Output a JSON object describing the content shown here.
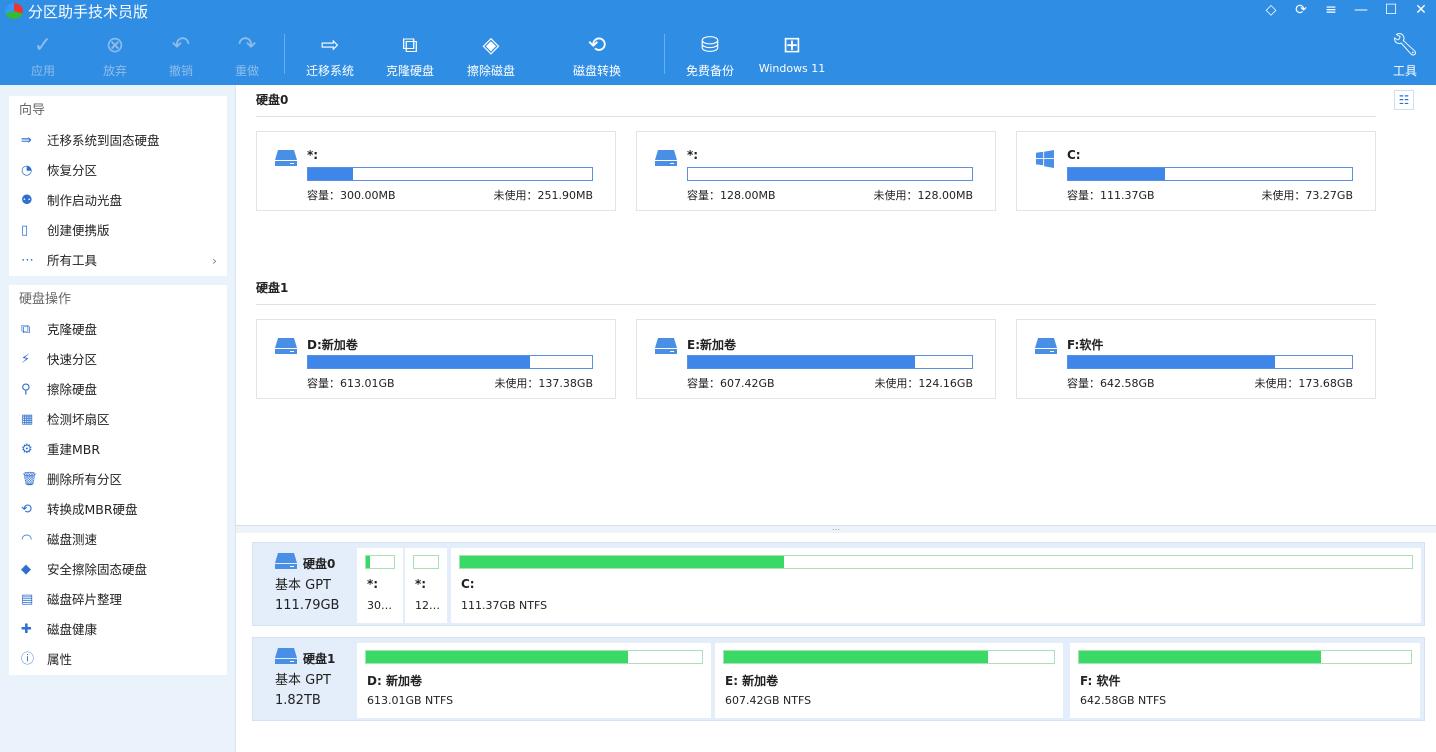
{
  "app": {
    "title": "分区助手技术员版"
  },
  "window_buttons": [
    "diamond-icon",
    "refresh-icon",
    "menu-icon",
    "minimize-icon",
    "maximize-icon",
    "close-icon"
  ],
  "toolbar": {
    "apply": "应用",
    "discard": "放弃",
    "undo": "撤销",
    "redo": "重做",
    "migrate": "迁移系统",
    "clone": "克隆硬盘",
    "wipe": "擦除磁盘",
    "convert": "磁盘转换",
    "backup": "免费备份",
    "win11": "Windows 11",
    "tools": "工具"
  },
  "sidebar": {
    "wizard_title": "向导",
    "wizard": [
      {
        "label": "迁移系统到固态硬盘"
      },
      {
        "label": "恢复分区"
      },
      {
        "label": "制作启动光盘"
      },
      {
        "label": "创建便携版"
      },
      {
        "label": "所有工具"
      }
    ],
    "ops_title": "硬盘操作",
    "ops": [
      {
        "label": "克隆硬盘"
      },
      {
        "label": "快速分区"
      },
      {
        "label": "擦除硬盘"
      },
      {
        "label": "检测坏扇区"
      },
      {
        "label": "重建MBR"
      },
      {
        "label": "删除所有分区"
      },
      {
        "label": "转换成MBR硬盘"
      },
      {
        "label": "磁盘测速"
      },
      {
        "label": "安全擦除固态硬盘"
      },
      {
        "label": "磁盘碎片整理"
      },
      {
        "label": "磁盘健康"
      },
      {
        "label": "属性"
      }
    ]
  },
  "colors": {
    "accent": "#2f8de4",
    "usage_bar": "#3f86ea",
    "partition_bar": "#3ad966"
  },
  "disks": [
    {
      "title": "硬盘0",
      "name": "硬盘0",
      "type": "基本 GPT",
      "size": "111.79GB",
      "partitions": [
        {
          "name": "*:",
          "cap": "容量：300.00MB",
          "free": "未使用：251.90MB",
          "used_pct": 16,
          "icon": "disk",
          "label": "*:",
          "info": "30…"
        },
        {
          "name": "*:",
          "cap": "容量：128.00MB",
          "free": "未使用：128.00MB",
          "used_pct": 0,
          "icon": "disk",
          "label": "*:",
          "info": "12…"
        },
        {
          "name": "C:",
          "cap": "容量：111.37GB",
          "free": "未使用：73.27GB",
          "used_pct": 34,
          "icon": "windows",
          "label": "C:",
          "info": "111.37GB NTFS"
        }
      ]
    },
    {
      "title": "硬盘1",
      "name": "硬盘1",
      "type": "基本 GPT",
      "size": "1.82TB",
      "partitions": [
        {
          "name": "D:新加卷",
          "cap": "容量：613.01GB",
          "free": "未使用：137.38GB",
          "used_pct": 78,
          "icon": "disk",
          "label": "D: 新加卷",
          "info": "613.01GB NTFS"
        },
        {
          "name": "E:新加卷",
          "cap": "容量：607.42GB",
          "free": "未使用：124.16GB",
          "used_pct": 80,
          "icon": "disk",
          "label": "E: 新加卷",
          "info": "607.42GB NTFS"
        },
        {
          "name": "F:软件",
          "cap": "容量：642.58GB",
          "free": "未使用：173.68GB",
          "used_pct": 73,
          "icon": "disk",
          "label": "F: 软件",
          "info": "642.58GB NTFS"
        }
      ]
    }
  ]
}
